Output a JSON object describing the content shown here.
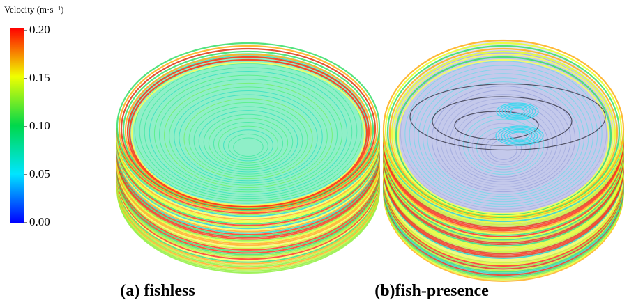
{
  "legend": {
    "title": "Velocity (m·s⁻¹)",
    "ticks": [
      "0.20",
      "0.15",
      "0.10",
      "0.05",
      "0.00"
    ]
  },
  "panels": [
    {
      "caption": "(a) fishless"
    },
    {
      "caption": "(b)fish-presence"
    }
  ]
}
